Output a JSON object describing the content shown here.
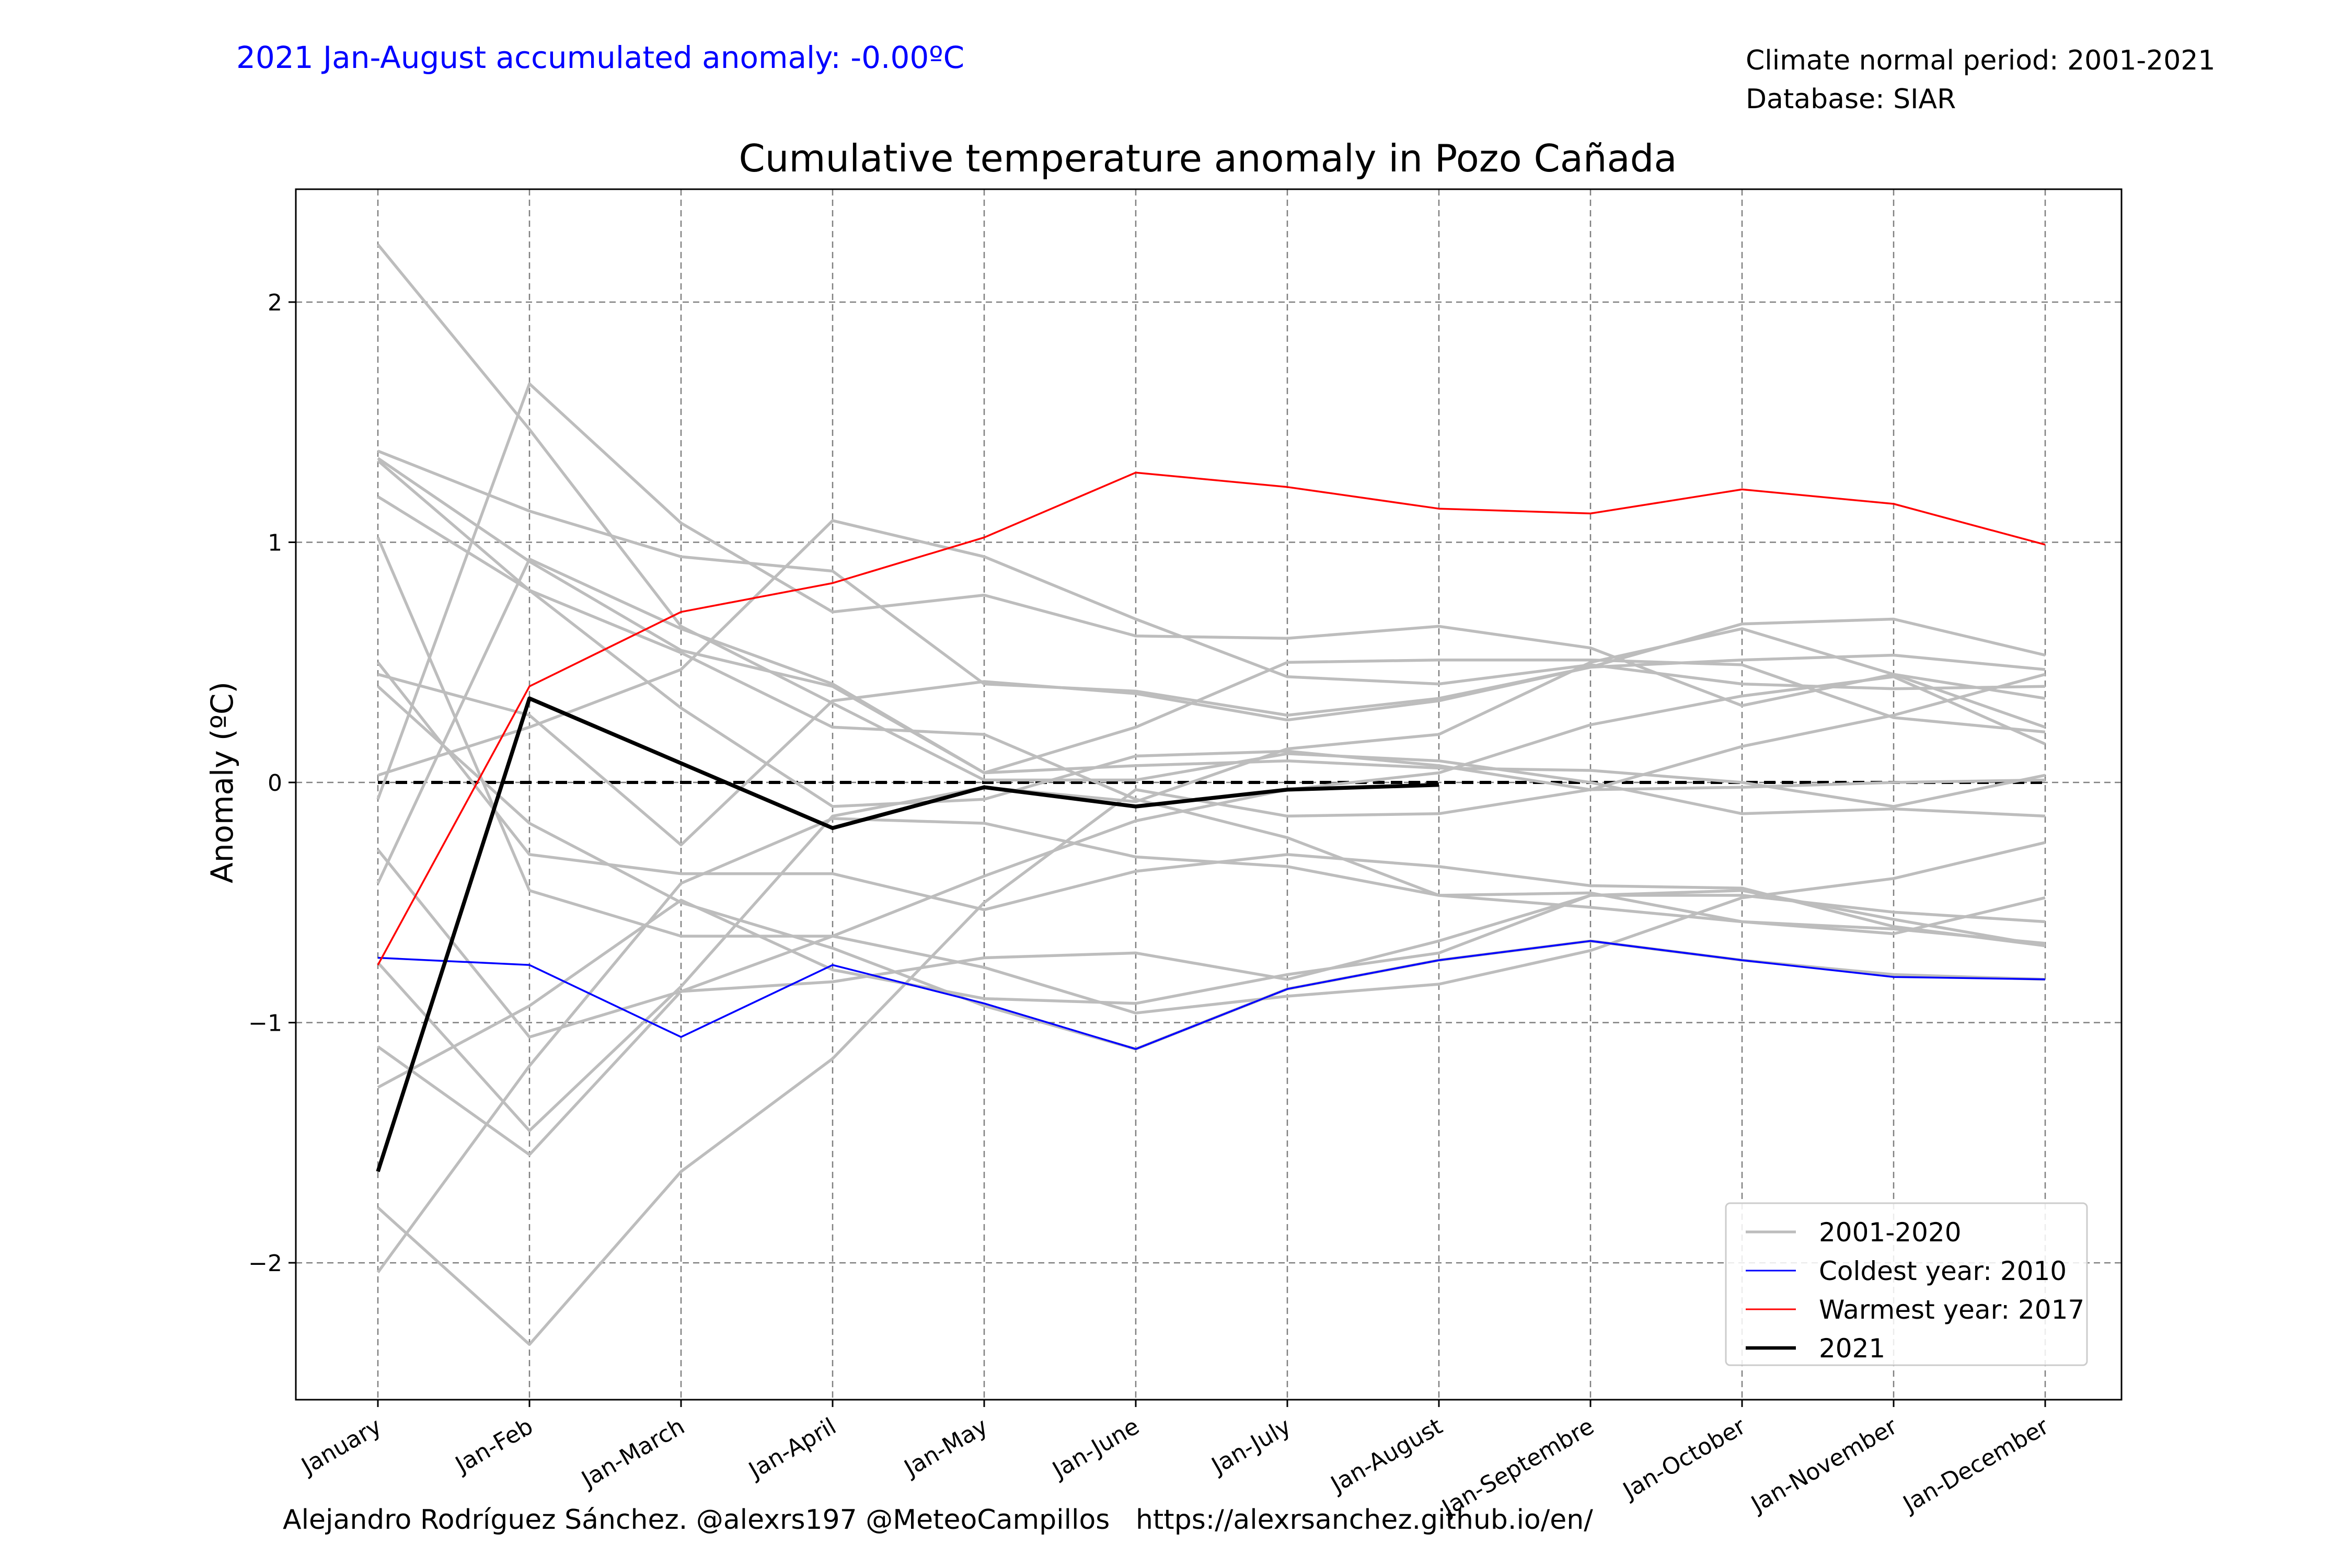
{
  "header": {
    "accumulated_anomaly": "2021 Jan-August accumulated anomaly: -0.00ºC",
    "climate_period": "Climate normal period: 2001-2021",
    "database": "Database: SIAR"
  },
  "footer": {
    "credits": "Alejandro Rodríguez Sánchez. @alexrs197 @MeteoCampillos   https://alexrsanchez.github.io/en/"
  },
  "colors": {
    "historic": "#bdbdbd",
    "coldest": "#0000ff",
    "warmest": "#ff0000",
    "current": "#000000",
    "header_blue": "#0000ff",
    "grid": "#808080"
  },
  "chart_data": {
    "type": "line",
    "title": "Cumulative temperature anomaly in Pozo Cañada",
    "xlabel": "",
    "ylabel": "Anomaly (ºC)",
    "ylim": [
      -2.57,
      2.47
    ],
    "yticks": [
      2,
      1,
      0,
      -1,
      -2
    ],
    "ytick_labels": [
      "2",
      "1",
      "0",
      "−1",
      "−2"
    ],
    "grid": true,
    "legend_position": "lower-right",
    "categories": [
      "January",
      "Jan-Feb",
      "Jan-March",
      "Jan-April",
      "Jan-May",
      "Jan-June",
      "Jan-July",
      "Jan-August",
      "Jan-Septembre",
      "Jan-October",
      "Jan-November",
      "Jan-December"
    ],
    "legend": [
      {
        "label": "2001-2020",
        "color": "#bdbdbd",
        "width": 2
      },
      {
        "label": "Coldest year: 2010",
        "color": "#0000ff",
        "width": 1.2
      },
      {
        "label": "Warmest year: 2017",
        "color": "#ff0000",
        "width": 1.2
      },
      {
        "label": "2021",
        "color": "#000000",
        "width": 2.5
      }
    ],
    "zero_line": {
      "value": 0,
      "color": "#000000",
      "style": "dashed"
    },
    "historic_series": [
      [
        2.24,
        1.47,
        0.65,
        0.33,
        0.01,
        0.01,
        0.12,
        0.09,
        0.0,
        -0.13,
        -0.11,
        -0.14
      ],
      [
        1.38,
        1.13,
        0.94,
        0.88,
        0.41,
        0.38,
        0.28,
        0.35,
        0.48,
        0.51,
        0.53,
        0.47
      ],
      [
        1.35,
        0.92,
        0.55,
        0.4,
        0.04,
        0.07,
        0.09,
        0.06,
        0.05,
        0.0,
        -0.1,
        0.03
      ],
      [
        1.34,
        0.8,
        0.54,
        0.23,
        0.2,
        -0.07,
        -0.23,
        -0.47,
        -0.46,
        -0.58,
        -0.61,
        -0.67
      ],
      [
        1.19,
        0.8,
        0.31,
        -0.1,
        -0.07,
        0.11,
        0.13,
        0.07,
        -0.03,
        0.15,
        0.28,
        0.45
      ],
      [
        1.02,
        -0.45,
        -0.64,
        -0.64,
        -0.77,
        -0.96,
        -0.89,
        -0.84,
        -0.7,
        -0.48,
        -0.4,
        -0.25
      ],
      [
        0.5,
        -0.3,
        -0.38,
        -0.38,
        -0.53,
        -0.37,
        -0.3,
        -0.35,
        -0.43,
        -0.44,
        -0.6,
        -0.68
      ],
      [
        0.45,
        0.28,
        -0.26,
        0.34,
        0.42,
        0.37,
        0.26,
        0.34,
        0.48,
        0.66,
        0.68,
        0.53
      ],
      [
        0.4,
        -0.17,
        -0.5,
        -0.69,
        -0.93,
        -1.11,
        -0.86,
        -0.74,
        -0.66,
        -0.74,
        -0.8,
        -0.82
      ],
      [
        0.03,
        0.23,
        0.47,
        1.09,
        0.94,
        0.68,
        0.44,
        0.41,
        0.49,
        0.41,
        0.39,
        0.4
      ],
      [
        -0.07,
        1.66,
        1.08,
        0.71,
        0.78,
        0.61,
        0.6,
        0.65,
        0.56,
        0.32,
        0.45,
        0.23
      ],
      [
        -0.28,
        -1.06,
        -0.87,
        -0.64,
        -0.39,
        -0.16,
        -0.03,
        0.04,
        0.24,
        0.36,
        0.44,
        0.16
      ],
      [
        -0.42,
        0.93,
        0.64,
        0.41,
        0.04,
        0.23,
        0.5,
        0.51,
        0.51,
        0.49,
        0.27,
        0.21
      ],
      [
        -1.1,
        -1.55,
        -0.87,
        -0.83,
        -0.73,
        -0.71,
        -0.82,
        -0.66,
        -0.47,
        -0.47,
        -0.54,
        -0.58
      ],
      [
        -1.27,
        -0.93,
        -0.49,
        -0.78,
        -0.9,
        -0.92,
        -0.8,
        -0.71,
        -0.47,
        -0.45,
        -0.57,
        -0.68
      ],
      [
        -1.77,
        -2.34,
        -1.62,
        -1.15,
        -0.5,
        -0.03,
        -0.14,
        -0.13,
        -0.03,
        -0.02,
        0.0,
        0.01
      ],
      [
        -2.04,
        -1.18,
        -0.42,
        -0.15,
        -0.17,
        -0.31,
        -0.35,
        -0.47,
        -0.52,
        -0.58,
        -0.63,
        -0.48
      ],
      [
        -0.75,
        -1.45,
        -0.85,
        -0.14,
        -0.02,
        -0.08,
        0.14,
        0.2,
        0.5,
        0.64,
        0.45,
        0.35
      ]
    ],
    "series": [
      {
        "name": "Coldest year: 2010",
        "values": [
          -0.73,
          -0.76,
          -1.06,
          -0.76,
          -0.92,
          -1.11,
          -0.86,
          -0.74,
          -0.66,
          -0.74,
          -0.81,
          -0.82
        ]
      },
      {
        "name": "Warmest year: 2017",
        "values": [
          -0.76,
          0.4,
          0.71,
          0.83,
          1.02,
          1.29,
          1.23,
          1.14,
          1.12,
          1.22,
          1.16,
          0.99
        ]
      },
      {
        "name": "2021",
        "values": [
          -1.62,
          0.35,
          0.08,
          -0.19,
          -0.02,
          -0.1,
          -0.03,
          -0.01,
          null,
          null,
          null,
          null
        ]
      }
    ]
  }
}
